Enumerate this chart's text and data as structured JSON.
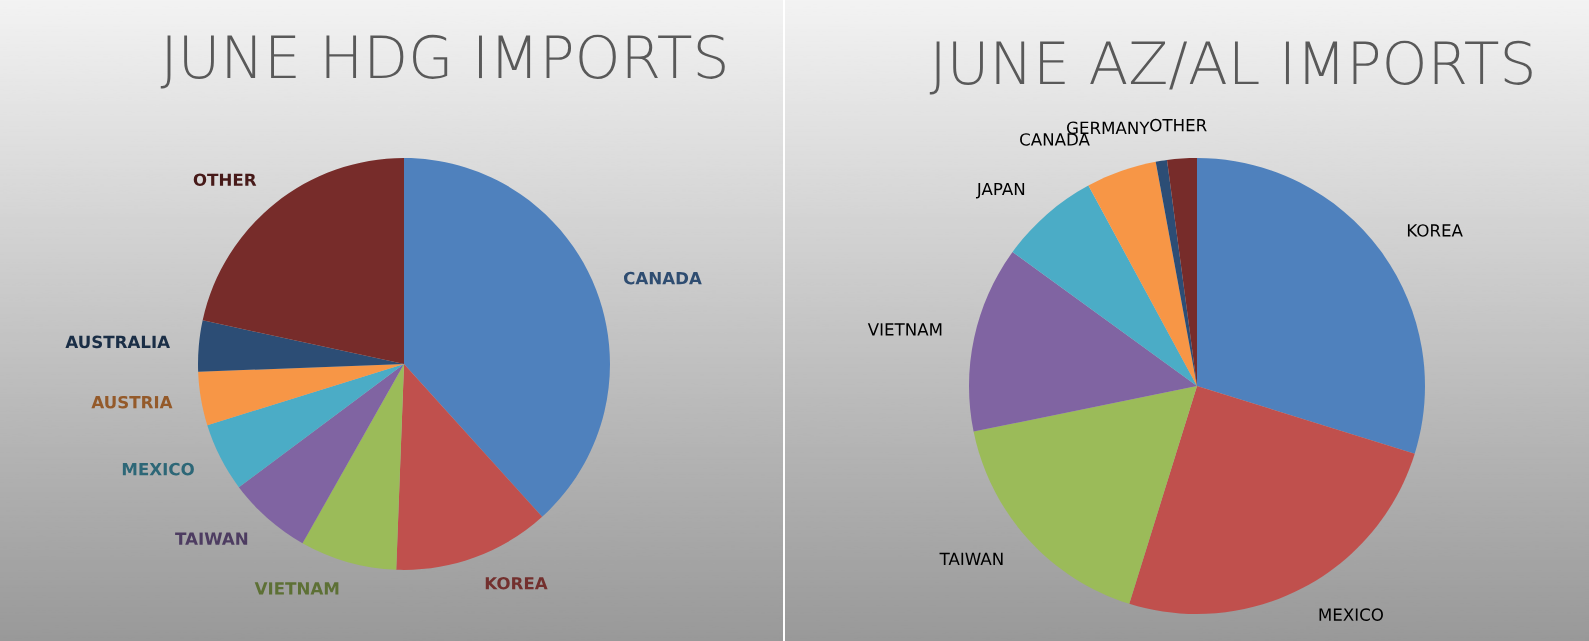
{
  "chart_data": [
    {
      "type": "pie",
      "title": "JUNE HDG IMPORTS",
      "categories": [
        "CANADA",
        "KOREA",
        "VIETNAM",
        "TAIWAN",
        "MEXICO",
        "AUSTRIA",
        "AUSTRALIA",
        "OTHER"
      ],
      "values": [
        38.3,
        12.3,
        7.6,
        6.6,
        5.4,
        4.2,
        4.0,
        21.6
      ],
      "colors": [
        "#4f81bd",
        "#c0504d",
        "#9bbb59",
        "#8064a2",
        "#4bacc6",
        "#f79646",
        "#2c4d75",
        "#772c2a"
      ],
      "legend": false
    },
    {
      "type": "pie",
      "title": "JUNE AZ/AL IMPORTS",
      "categories": [
        "KOREA",
        "MEXICO",
        "TAIWAN",
        "VIETNAM",
        "JAPAN",
        "CANADA",
        "GERMANY",
        "OTHER"
      ],
      "values": [
        29.8,
        25.0,
        17.0,
        13.2,
        7.1,
        5.0,
        0.8,
        2.1
      ],
      "colors": [
        "#4f81bd",
        "#c0504d",
        "#9bbb59",
        "#8064a2",
        "#4bacc6",
        "#f79646",
        "#2c4d75",
        "#772c2a"
      ],
      "legend": false
    }
  ]
}
